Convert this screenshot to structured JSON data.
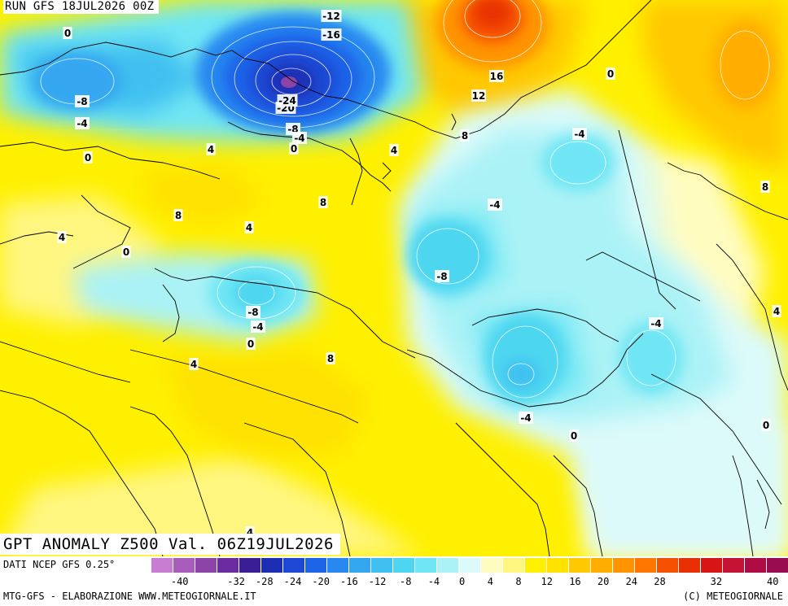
{
  "header": {
    "run": "RUN GFS 18JUL2026 00Z"
  },
  "title": "GPT ANOMALY Z500 Val. 06Z19JUL2026",
  "footer": {
    "source": "DATI NCEP GFS 0.25°",
    "credit_left": "MTG-GFS - ELABORAZIONE WWW.METEOGIORNALE.IT",
    "credit_right": "(C) METEOGIORNALE"
  },
  "colorbar": {
    "tick_labels": [
      "-40",
      "-32",
      "-28",
      "-24",
      "-20",
      "-16",
      "-12",
      "-8",
      "-4",
      "0",
      "4",
      "8",
      "12",
      "16",
      "20",
      "24",
      "28",
      "32",
      "40"
    ],
    "colors": [
      "#c87cd2",
      "#a85cbc",
      "#8c44a8",
      "#6a2ca0",
      "#3a1e96",
      "#1c2fb4",
      "#1e48d4",
      "#1e64e8",
      "#2888f0",
      "#34a6f0",
      "#40c0f0",
      "#4ed6f0",
      "#70e6f4",
      "#aaf2f6",
      "#dcfafa",
      "#fffcc0",
      "#fff680",
      "#fff000",
      "#ffe200",
      "#ffc800",
      "#ffae00",
      "#ff9400",
      "#ff7600",
      "#f55000",
      "#e83000",
      "#d81414",
      "#c41234",
      "#b00c44",
      "#9a0c50"
    ]
  },
  "contour_labels": [
    {
      "text": "0"
    },
    {
      "text": "-12"
    },
    {
      "text": "-16"
    },
    {
      "text": "-8"
    },
    {
      "text": "-4"
    },
    {
      "text": "-20"
    },
    {
      "text": "-24"
    },
    {
      "text": "-8"
    },
    {
      "text": "-4"
    },
    {
      "text": "0"
    },
    {
      "text": "16"
    },
    {
      "text": "12"
    },
    {
      "text": "8"
    },
    {
      "text": "0"
    },
    {
      "text": "-4"
    },
    {
      "text": "4"
    },
    {
      "text": "0"
    },
    {
      "text": "4"
    },
    {
      "text": "8"
    },
    {
      "text": "8"
    },
    {
      "text": "4"
    },
    {
      "text": "-4"
    },
    {
      "text": "8"
    },
    {
      "text": "4"
    },
    {
      "text": "0"
    },
    {
      "text": "-8"
    },
    {
      "text": "-8"
    },
    {
      "text": "-4"
    },
    {
      "text": "0"
    },
    {
      "text": "4"
    },
    {
      "text": "8"
    },
    {
      "text": "-4"
    },
    {
      "text": "4"
    },
    {
      "text": "-4"
    },
    {
      "text": "0"
    },
    {
      "text": "0"
    },
    {
      "text": "4"
    }
  ]
}
